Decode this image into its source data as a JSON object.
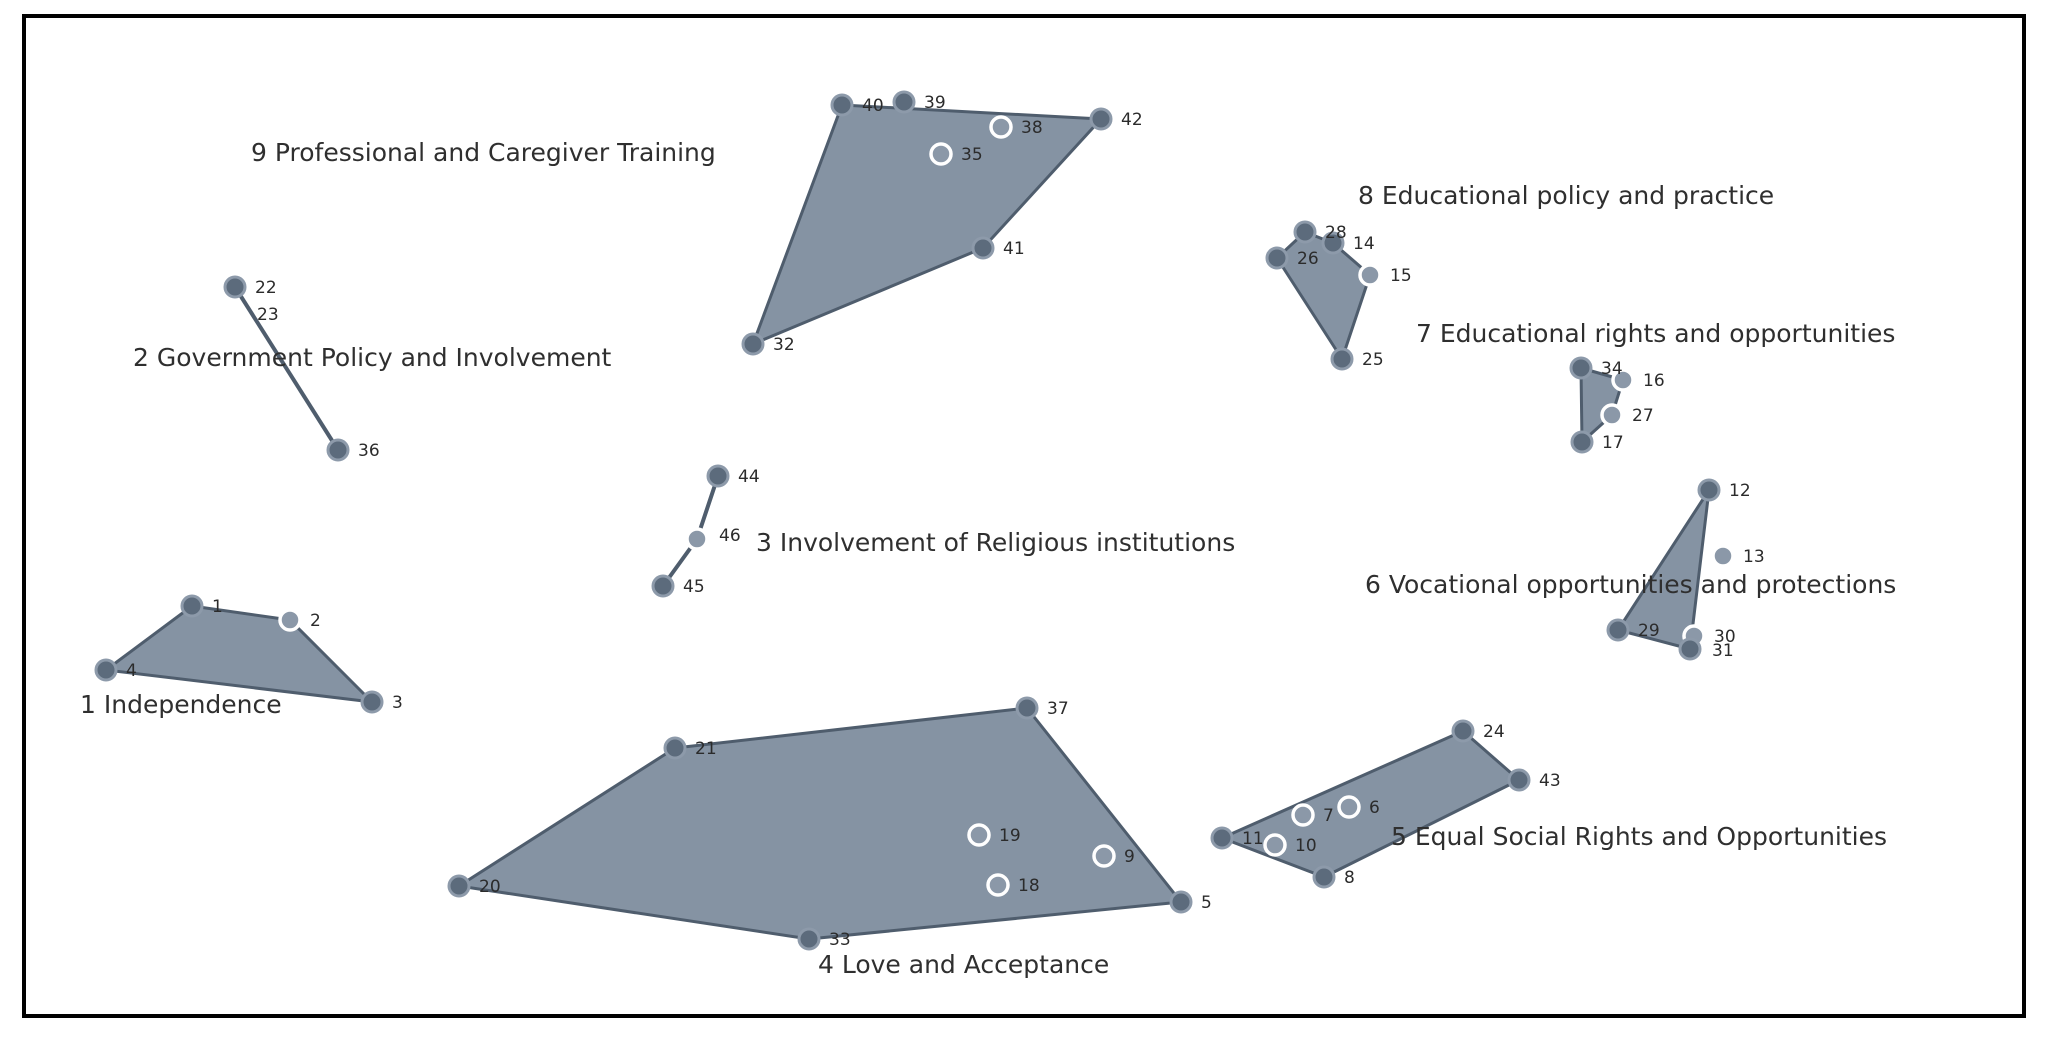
{
  "chart_data": {
    "type": "cluster_map",
    "clusters": [
      {
        "id": "c1",
        "label": "1 Independence",
        "points": [
          "1",
          "2",
          "3",
          "4"
        ]
      },
      {
        "id": "c2",
        "label": "2 Government Policy and Involvement",
        "points": [
          "22",
          "23",
          "36"
        ]
      },
      {
        "id": "c3",
        "label": "3 Involvement of Religious institutions",
        "points": [
          "44",
          "46",
          "45"
        ]
      },
      {
        "id": "c4",
        "label": "4 Love and Acceptance",
        "points": [
          "21",
          "37",
          "5",
          "33",
          "20",
          "19",
          "9",
          "18"
        ]
      },
      {
        "id": "c5",
        "label": "5 Equal Social Rights and Opportunities",
        "points": [
          "24",
          "43",
          "8",
          "11",
          "7",
          "6",
          "10"
        ]
      },
      {
        "id": "c6",
        "label": "6 Vocational opportunities and protections",
        "points": [
          "12",
          "13",
          "29",
          "30",
          "31"
        ]
      },
      {
        "id": "c7",
        "label": "7 Educational rights and opportunities",
        "points": [
          "34",
          "16",
          "27",
          "17"
        ]
      },
      {
        "id": "c8",
        "label": "8 Educational policy and practice",
        "points": [
          "28",
          "14",
          "26",
          "15",
          "25"
        ]
      },
      {
        "id": "c9",
        "label": "9 Professional and Caregiver Training",
        "points": [
          "40",
          "39",
          "38",
          "35",
          "42",
          "41",
          "32"
        ]
      }
    ],
    "point_labels": [
      "1",
      "2",
      "3",
      "4",
      "5",
      "6",
      "7",
      "8",
      "9",
      "10",
      "11",
      "12",
      "13",
      "14",
      "15",
      "16",
      "17",
      "18",
      "19",
      "20",
      "21",
      "22",
      "23",
      "24",
      "25",
      "26",
      "27",
      "28",
      "29",
      "30",
      "31",
      "32",
      "33",
      "34",
      "35",
      "36",
      "37",
      "38",
      "39",
      "40",
      "41",
      "42",
      "43",
      "44",
      "45",
      "46"
    ]
  }
}
